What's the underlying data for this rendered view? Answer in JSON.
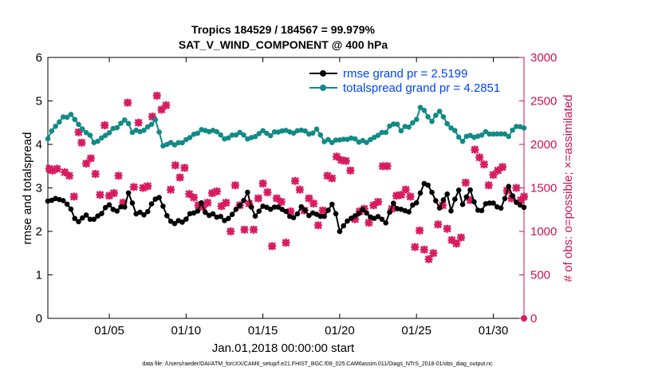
{
  "chart_data": {
    "type": "line",
    "title": "Tropics 184529 / 184567 = 99.979%",
    "subtitle": "SAT_V_WIND_COMPONENT @ 400 hPa",
    "xlabel": "Jan.01,2018 00:00:00 start",
    "ylabel": "rmse and totalspread",
    "ylabel_right": "# of obs: o=possible; ×=assimilated",
    "footnote": "data file: /Users/raeder/DAI/ATM_forcXX/CAM6_setup/f.e21.FHIST_BGC.f09_025.CAM6assim.011/Diags_NTrS_2018-01/obs_diag_output.nc",
    "xlim": [
      1,
      32
    ],
    "ylim": [
      0,
      6
    ],
    "ylim_right": [
      0,
      3000
    ],
    "x_ticks": [
      5,
      10,
      15,
      20,
      25,
      30
    ],
    "x_tick_labels": [
      "01/05",
      "01/10",
      "01/15",
      "01/20",
      "01/25",
      "01/30"
    ],
    "y_ticks": [
      0,
      1,
      2,
      3,
      4,
      5,
      6
    ],
    "y_tick_labels": [
      "0",
      "1",
      "2",
      "3",
      "4",
      "5",
      "6"
    ],
    "y_right_ticks": [
      0,
      500,
      1000,
      1500,
      2000,
      2500,
      3000
    ],
    "y_right_tick_labels": [
      "0",
      "500",
      "1000",
      "1500",
      "2000",
      "2500",
      "3000"
    ],
    "colors": {
      "rmse": "#000000",
      "totalspread": "#128a86",
      "obs": "#d81b60",
      "legend_text": "#0044ff",
      "right_axis": "#cc1155"
    },
    "legend_position": "top-right",
    "series": [
      {
        "name": "rmse grand pr = 2.5199",
        "axis": "left",
        "anchors": [
          [
            1,
            2.65
          ],
          [
            1.5,
            2.7
          ],
          [
            2,
            2.7
          ],
          [
            2.5,
            2.5
          ],
          [
            3,
            2.2
          ],
          [
            3.5,
            2.35
          ],
          [
            4,
            2.25
          ],
          [
            4.5,
            2.35
          ],
          [
            5,
            2.65
          ],
          [
            5.5,
            2.45
          ],
          [
            6,
            2.6
          ],
          [
            6.3,
            2.95
          ],
          [
            6.7,
            2.4
          ],
          [
            7.5,
            2.45
          ],
          [
            8,
            2.75
          ],
          [
            8.4,
            2.75
          ],
          [
            8.8,
            2.25
          ],
          [
            9.5,
            2.2
          ],
          [
            10,
            2.3
          ],
          [
            10.5,
            2.45
          ],
          [
            11,
            2.6
          ],
          [
            11.5,
            2.35
          ],
          [
            12,
            2.35
          ],
          [
            12.5,
            2.3
          ],
          [
            13,
            2.4
          ],
          [
            13.5,
            2.55
          ],
          [
            14,
            2.9
          ],
          [
            14.5,
            2.3
          ],
          [
            15,
            2.6
          ],
          [
            15.5,
            2.5
          ],
          [
            16,
            2.55
          ],
          [
            16.5,
            2.4
          ],
          [
            17,
            2.3
          ],
          [
            17.5,
            2.55
          ],
          [
            18,
            2.4
          ],
          [
            18.5,
            2.45
          ],
          [
            19,
            2.35
          ],
          [
            19.5,
            2.65
          ],
          [
            20,
            2.05
          ],
          [
            20.5,
            2.25
          ],
          [
            21,
            2.35
          ],
          [
            21.5,
            2.55
          ],
          [
            22,
            2.3
          ],
          [
            22.5,
            2.35
          ],
          [
            23,
            2.2
          ],
          [
            23.5,
            2.6
          ],
          [
            24,
            2.55
          ],
          [
            24.5,
            2.45
          ],
          [
            25,
            2.7
          ],
          [
            25.5,
            3.15
          ],
          [
            26,
            2.9
          ],
          [
            26.5,
            2.5
          ],
          [
            27,
            2.85
          ],
          [
            27.3,
            2.4
          ],
          [
            27.7,
            3.0
          ],
          [
            28,
            2.65
          ],
          [
            28.5,
            2.9
          ],
          [
            29,
            2.45
          ],
          [
            29.5,
            2.6
          ],
          [
            30,
            2.65
          ],
          [
            30.5,
            2.5
          ],
          [
            31,
            3.0
          ],
          [
            31.5,
            2.65
          ],
          [
            32,
            2.6
          ]
        ],
        "mean": 2.52
      },
      {
        "name": "totalspread grand pr = 4.2851",
        "axis": "left",
        "anchors": [
          [
            1,
            4.1
          ],
          [
            1.5,
            4.45
          ],
          [
            2,
            4.6
          ],
          [
            2.5,
            4.7
          ],
          [
            3,
            4.45
          ],
          [
            3.5,
            4.3
          ],
          [
            4,
            4.05
          ],
          [
            4.5,
            4.15
          ],
          [
            5,
            4.3
          ],
          [
            5.5,
            4.4
          ],
          [
            6,
            4.6
          ],
          [
            6.5,
            4.3
          ],
          [
            7,
            4.3
          ],
          [
            7.5,
            4.4
          ],
          [
            8,
            4.55
          ],
          [
            8.5,
            4.0
          ],
          [
            9,
            4.05
          ],
          [
            9.5,
            4.0
          ],
          [
            10,
            4.1
          ],
          [
            10.5,
            4.2
          ],
          [
            11,
            4.35
          ],
          [
            11.5,
            4.3
          ],
          [
            12,
            4.3
          ],
          [
            12.5,
            4.15
          ],
          [
            13,
            4.2
          ],
          [
            13.5,
            4.3
          ],
          [
            14,
            4.1
          ],
          [
            14.5,
            4.15
          ],
          [
            15,
            4.3
          ],
          [
            15.5,
            4.2
          ],
          [
            16,
            4.3
          ],
          [
            16.5,
            4.35
          ],
          [
            17,
            4.25
          ],
          [
            17.5,
            4.35
          ],
          [
            18,
            4.2
          ],
          [
            18.5,
            4.35
          ],
          [
            19,
            4.1
          ],
          [
            19.5,
            4.05
          ],
          [
            20,
            4.1
          ],
          [
            20.5,
            4.15
          ],
          [
            21,
            4.1
          ],
          [
            21.5,
            4.05
          ],
          [
            22,
            4.1
          ],
          [
            22.5,
            4.2
          ],
          [
            23,
            4.3
          ],
          [
            23.5,
            4.5
          ],
          [
            24,
            4.35
          ],
          [
            24.5,
            4.4
          ],
          [
            25,
            4.55
          ],
          [
            25.2,
            4.9
          ],
          [
            25.6,
            4.75
          ],
          [
            26,
            4.55
          ],
          [
            26.5,
            4.8
          ],
          [
            27,
            4.5
          ],
          [
            27.5,
            4.3
          ],
          [
            28,
            4.1
          ],
          [
            28.5,
            4.2
          ],
          [
            29,
            4.2
          ],
          [
            29.5,
            4.3
          ],
          [
            30,
            4.2
          ],
          [
            30.5,
            4.25
          ],
          [
            31,
            4.2
          ],
          [
            31.5,
            4.4
          ],
          [
            32,
            4.4
          ]
        ],
        "mean": 4.29
      },
      {
        "name": "obs assimilated (×)",
        "axis": "right",
        "points": [
          [
            1.1,
            1720
          ],
          [
            1.3,
            1700
          ],
          [
            1.6,
            1720
          ],
          [
            2.1,
            1680
          ],
          [
            2.4,
            1640
          ],
          [
            2.7,
            1400
          ],
          [
            3.0,
            2140
          ],
          [
            3.2,
            2020
          ],
          [
            3.5,
            1780
          ],
          [
            3.8,
            1840
          ],
          [
            4.1,
            1660
          ],
          [
            4.4,
            1420
          ],
          [
            4.7,
            2220
          ],
          [
            5.0,
            1410
          ],
          [
            5.3,
            1440
          ],
          [
            5.6,
            1640
          ],
          [
            5.9,
            1330
          ],
          [
            6.2,
            2480
          ],
          [
            6.6,
            1510
          ],
          [
            6.9,
            2250
          ],
          [
            7.2,
            1500
          ],
          [
            7.5,
            1520
          ],
          [
            7.8,
            2320
          ],
          [
            8.1,
            2560
          ],
          [
            8.4,
            2400
          ],
          [
            8.7,
            2450
          ],
          [
            9.0,
            1480
          ],
          [
            9.3,
            1760
          ],
          [
            9.6,
            1620
          ],
          [
            9.9,
            1730
          ],
          [
            10.2,
            1430
          ],
          [
            10.5,
            1390
          ],
          [
            10.8,
            1300
          ],
          [
            11.1,
            1280
          ],
          [
            11.4,
            1330
          ],
          [
            11.7,
            1440
          ],
          [
            12.0,
            1460
          ],
          [
            12.3,
            1290
          ],
          [
            12.6,
            1330
          ],
          [
            12.9,
            1000
          ],
          [
            13.2,
            1530
          ],
          [
            13.5,
            1300
          ],
          [
            13.8,
            1020
          ],
          [
            14.1,
            1320
          ],
          [
            14.4,
            1020
          ],
          [
            14.7,
            1380
          ],
          [
            15.0,
            1550
          ],
          [
            15.3,
            1450
          ],
          [
            15.6,
            830
          ],
          [
            15.9,
            1380
          ],
          [
            16.2,
            1340
          ],
          [
            16.5,
            870
          ],
          [
            16.8,
            1230
          ],
          [
            17.1,
            1580
          ],
          [
            17.4,
            1480
          ],
          [
            17.7,
            1240
          ],
          [
            18.0,
            1380
          ],
          [
            18.3,
            1320
          ],
          [
            18.6,
            1070
          ],
          [
            18.9,
            1240
          ],
          [
            19.2,
            1640
          ],
          [
            19.5,
            1610
          ],
          [
            19.8,
            1860
          ],
          [
            20.1,
            1820
          ],
          [
            20.4,
            1810
          ],
          [
            20.7,
            1700
          ],
          [
            21.0,
            1140
          ],
          [
            21.3,
            1230
          ],
          [
            21.6,
            1260
          ],
          [
            21.9,
            1100
          ],
          [
            22.2,
            1300
          ],
          [
            22.5,
            1340
          ],
          [
            22.8,
            1750
          ],
          [
            23.1,
            1750
          ],
          [
            23.4,
            1260
          ],
          [
            23.7,
            1410
          ],
          [
            24.0,
            1420
          ],
          [
            24.3,
            1480
          ],
          [
            24.6,
            1400
          ],
          [
            24.9,
            820
          ],
          [
            25.2,
            1010
          ],
          [
            25.5,
            790
          ],
          [
            25.8,
            680
          ],
          [
            26.1,
            750
          ],
          [
            26.4,
            1080
          ],
          [
            26.7,
            1300
          ],
          [
            27.0,
            1030
          ],
          [
            27.3,
            900
          ],
          [
            27.6,
            860
          ],
          [
            27.9,
            930
          ],
          [
            28.2,
            1560
          ],
          [
            28.5,
            1360
          ],
          [
            28.8,
            1940
          ],
          [
            29.1,
            1850
          ],
          [
            29.4,
            1770
          ],
          [
            29.7,
            1530
          ],
          [
            30.0,
            1650
          ],
          [
            30.3,
            1700
          ],
          [
            30.6,
            1740
          ],
          [
            30.9,
            1470
          ],
          [
            31.2,
            1380
          ],
          [
            31.5,
            1500
          ],
          [
            31.8,
            1360
          ],
          [
            32.0,
            1400
          ]
        ]
      },
      {
        "name": "obs possible (o)",
        "axis": "right",
        "points": [
          [
            32,
            0
          ]
        ]
      }
    ]
  }
}
